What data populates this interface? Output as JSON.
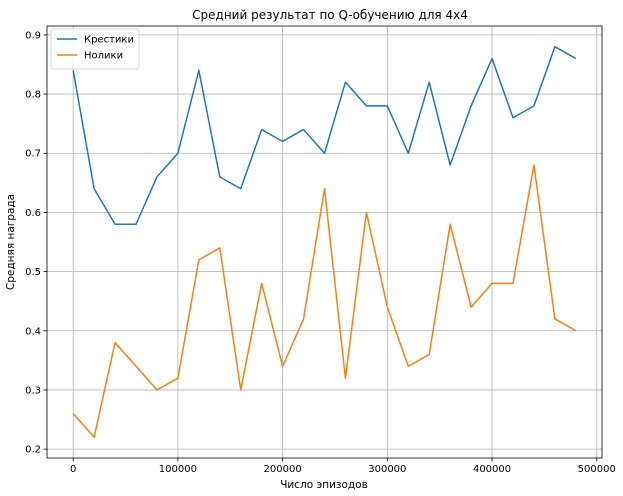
{
  "chart_data": {
    "type": "line",
    "title": "Средний результат по Q-обучению для 4x4",
    "xlabel": "Число эпизодов",
    "ylabel": "Средняя награда",
    "xlim": [
      -25000,
      505000
    ],
    "ylim": [
      0.185,
      0.915
    ],
    "grid": true,
    "legend_position": "top-left",
    "x_ticks": [
      0,
      100000,
      200000,
      300000,
      400000,
      500000
    ],
    "x_tick_labels": [
      "0",
      "100000",
      "200000",
      "300000",
      "400000",
      "500000"
    ],
    "y_ticks": [
      0.2,
      0.3,
      0.4,
      0.5,
      0.6,
      0.7,
      0.8,
      0.9
    ],
    "y_tick_labels": [
      "0.2",
      "0.3",
      "0.4",
      "0.5",
      "0.6",
      "0.7",
      "0.8",
      "0.9"
    ],
    "x": [
      0,
      20000,
      40000,
      60000,
      80000,
      100000,
      120000,
      140000,
      160000,
      180000,
      200000,
      220000,
      240000,
      260000,
      280000,
      300000,
      320000,
      340000,
      360000,
      380000,
      400000,
      420000,
      440000,
      460000,
      480000
    ],
    "series": [
      {
        "name": "Крестики",
        "color": "#1f77b4",
        "values": [
          0.84,
          0.64,
          0.58,
          0.58,
          0.66,
          0.7,
          0.84,
          0.66,
          0.64,
          0.74,
          0.72,
          0.74,
          0.7,
          0.82,
          0.78,
          0.78,
          0.7,
          0.82,
          0.68,
          0.78,
          0.86,
          0.76,
          0.78,
          0.88,
          0.86
        ]
      },
      {
        "name": "Нолики",
        "color": "#ff7f0e",
        "values": [
          0.26,
          0.22,
          0.38,
          0.34,
          0.3,
          0.32,
          0.52,
          0.54,
          0.3,
          0.48,
          0.34,
          0.42,
          0.64,
          0.32,
          0.6,
          0.44,
          0.34,
          0.36,
          0.58,
          0.44,
          0.48,
          0.48,
          0.68,
          0.42,
          0.4
        ]
      }
    ]
  }
}
